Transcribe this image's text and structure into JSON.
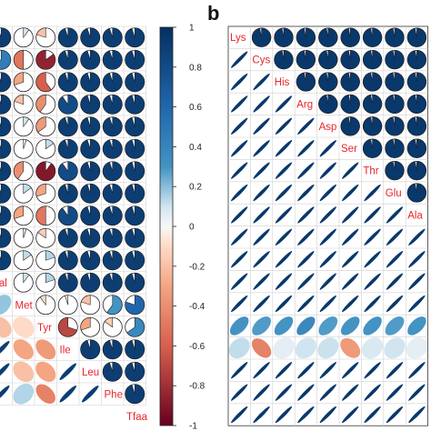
{
  "panels": [
    {
      "letter": "",
      "name": "panel-a"
    },
    {
      "letter": "b",
      "name": "panel-b"
    }
  ],
  "colors": {
    "negative_strong": "#67001f",
    "negative_mid": "#d6604d",
    "neutral": "#f7f7f7",
    "positive_mid": "#4393c3",
    "positive_strong": "#053061",
    "label": "#e8252b",
    "grid": "#d0d0d0"
  },
  "chart_data": [
    {
      "type": "heatmap",
      "name": "panel-a-pie-matrix",
      "glyph": "pie",
      "title": "",
      "variables": [
        "Val",
        "Met",
        "Tyr",
        "Ile",
        "Leu",
        "Phe",
        "Tfaa"
      ],
      "note_visible_rows": 17,
      "pie_cells_visible": [
        [
          0.95,
          0.1,
          -0.2,
          0.95,
          0.95,
          0.95,
          0.95
        ],
        [
          0.7,
          -0.5,
          -0.85,
          0.95,
          0.95,
          0.95,
          0.95
        ],
        [
          0.95,
          -0.3,
          -0.6,
          0.95,
          0.95,
          0.95,
          0.95
        ],
        [
          0.95,
          -0.2,
          -0.4,
          0.9,
          0.95,
          0.95,
          0.95
        ],
        [
          0.95,
          0.1,
          -0.35,
          0.95,
          0.95,
          0.95,
          0.95
        ],
        [
          0.95,
          0.05,
          0.15,
          0.95,
          0.95,
          0.95,
          0.95
        ],
        [
          0.95,
          -0.4,
          -0.9,
          0.9,
          0.95,
          0.95,
          0.95
        ],
        [
          0.95,
          0.15,
          -0.3,
          0.95,
          0.95,
          0.95,
          0.95
        ],
        [
          0.95,
          -0.3,
          -0.5,
          0.9,
          0.95,
          0.95,
          0.95
        ],
        [
          0.95,
          0.05,
          -0.15,
          0.95,
          0.95,
          0.95,
          0.95
        ],
        [
          0.95,
          0.15,
          0.2,
          0.95,
          0.95,
          0.95,
          0.95
        ],
        [
          null,
          0.1,
          0.2,
          0.95,
          0.95,
          0.95,
          0.95
        ],
        [
          0.3,
          null,
          -0.1,
          -0.05,
          -0.2,
          0.6,
          0.8
        ],
        [
          -0.2,
          -0.1,
          null,
          -0.7,
          -0.3,
          -0.15,
          0.65
        ],
        [
          0.95,
          -0.3,
          -0.35,
          null,
          0.95,
          0.95,
          0.95
        ],
        [
          0.95,
          -0.2,
          -0.3,
          0.95,
          null,
          0.95,
          0.95
        ],
        [
          0.95,
          0.2,
          -0.45,
          0.95,
          0.95,
          null,
          0.95
        ]
      ]
    },
    {
      "type": "heatmap",
      "name": "panel-a-colorbar",
      "ticks": [
        "1",
        "0.8",
        "0.6",
        "0.4",
        "0.2",
        "0",
        "-0.2",
        "-0.4",
        "-0.6",
        "-0.8",
        "-1"
      ],
      "range": [
        -1,
        1
      ]
    },
    {
      "type": "heatmap",
      "name": "panel-b-ellipse-matrix",
      "glyph": "ellipse-lower / pie-upper",
      "title": "",
      "variables": [
        "Lys",
        "Cys",
        "His",
        "Arg",
        "Asp",
        "Ser",
        "Thr",
        "Glu",
        "Ala"
      ],
      "upper_pie_value": 0.97,
      "lower_ellipse_value": 0.97,
      "weak_rows": {
        "13": [
          0.6,
          0.55,
          0.6,
          0.65,
          0.55,
          0.6,
          0.6,
          0.55,
          0.6,
          0.55
        ],
        "14": [
          0.15,
          -0.45,
          0.05,
          0.1,
          0.12,
          -0.35,
          0.08,
          0.1,
          0.05,
          0.1
        ]
      }
    }
  ]
}
